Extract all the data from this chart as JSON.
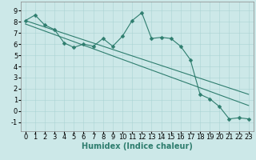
{
  "xlabel": "Humidex (Indice chaleur)",
  "xlim": [
    -0.5,
    23.5
  ],
  "ylim": [
    -1.8,
    9.8
  ],
  "xticks": [
    0,
    1,
    2,
    3,
    4,
    5,
    6,
    7,
    8,
    9,
    10,
    11,
    12,
    13,
    14,
    15,
    16,
    17,
    18,
    19,
    20,
    21,
    22,
    23
  ],
  "yticks": [
    -1,
    0,
    1,
    2,
    3,
    4,
    5,
    6,
    7,
    8,
    9
  ],
  "line1_x": [
    0,
    1,
    2,
    3,
    4,
    5,
    6,
    7,
    8,
    9,
    10,
    11,
    12,
    13,
    14,
    15,
    16,
    17,
    18,
    19,
    20,
    21,
    22,
    23
  ],
  "line1_y": [
    8.1,
    8.6,
    7.7,
    7.3,
    6.1,
    5.7,
    6.0,
    5.8,
    6.5,
    5.8,
    6.7,
    8.1,
    8.8,
    6.5,
    6.6,
    6.5,
    5.8,
    4.6,
    1.5,
    1.1,
    0.4,
    -0.7,
    -0.6,
    -0.7
  ],
  "line2_x": [
    0,
    23
  ],
  "line2_y": [
    8.1,
    1.5
  ],
  "line3_x": [
    0,
    23
  ],
  "line3_y": [
    7.8,
    0.5
  ],
  "line_color": "#2e7d6e",
  "bg_color": "#cce8e8",
  "grid_color": "#aad4d4",
  "tick_fontsize": 6,
  "xlabel_fontsize": 7,
  "marker": "D",
  "marker_size": 2.5,
  "linewidth": 0.8
}
